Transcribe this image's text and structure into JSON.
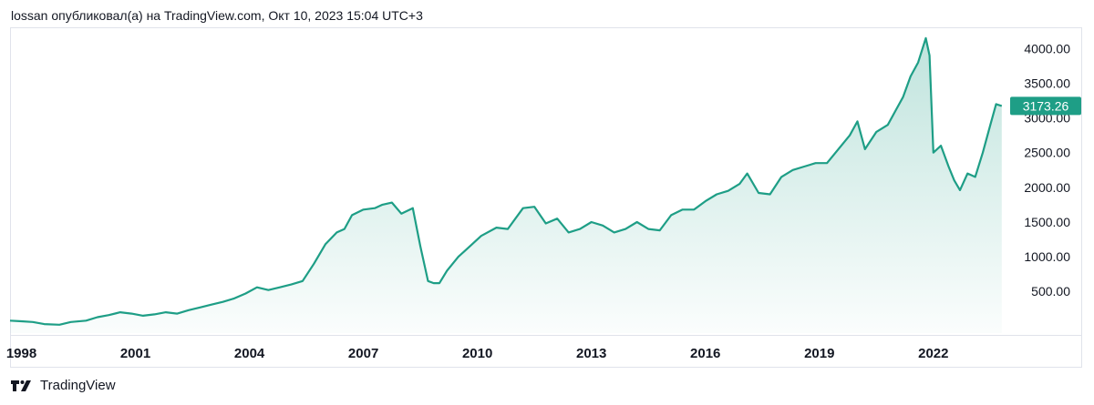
{
  "header": {
    "published_text": "lossan опубликовал(а) на TradingView.com, Окт 10, 2023 15:04 UTC+3"
  },
  "footer": {
    "brand": "TradingView",
    "logo_icon": "tradingview-logo-icon"
  },
  "chart_data": {
    "type": "area",
    "line_color": "#1e9e86",
    "fill_color": "#1e9e86",
    "last_value_label": "3173.26",
    "yticks": [
      500,
      1000,
      1500,
      2000,
      2500,
      3000,
      3500,
      4000
    ],
    "ytick_labels": [
      "500.00",
      "1000.00",
      "1500.00",
      "2000.00",
      "2500.00",
      "3000.00",
      "3500.00",
      "4000.00"
    ],
    "ylim": [
      -100,
      4280
    ],
    "xlim": [
      1997.7,
      2023.9
    ],
    "xticks": [
      1998,
      2001,
      2004,
      2007,
      2010,
      2013,
      2016,
      2019,
      2022
    ],
    "xtick_labels": [
      "1998",
      "2001",
      "2004",
      "2007",
      "2010",
      "2013",
      "2016",
      "2019",
      "2022"
    ],
    "x": [
      1997.7,
      1998.0,
      1998.3,
      1998.6,
      1999.0,
      1999.3,
      1999.7,
      2000.0,
      2000.3,
      2000.6,
      2000.9,
      2001.2,
      2001.5,
      2001.8,
      2002.1,
      2002.4,
      2002.7,
      2003.0,
      2003.3,
      2003.6,
      2003.9,
      2004.2,
      2004.5,
      2004.8,
      2005.1,
      2005.4,
      2005.7,
      2006.0,
      2006.3,
      2006.5,
      2006.7,
      2007.0,
      2007.3,
      2007.5,
      2007.75,
      2008.0,
      2008.3,
      2008.5,
      2008.7,
      2008.85,
      2009.0,
      2009.2,
      2009.5,
      2009.8,
      2010.1,
      2010.5,
      2010.8,
      2011.2,
      2011.5,
      2011.8,
      2012.1,
      2012.4,
      2012.7,
      2013.0,
      2013.3,
      2013.6,
      2013.9,
      2014.2,
      2014.5,
      2014.8,
      2015.1,
      2015.4,
      2015.7,
      2016.0,
      2016.3,
      2016.6,
      2016.9,
      2017.1,
      2017.4,
      2017.7,
      2018.0,
      2018.3,
      2018.6,
      2018.9,
      2019.2,
      2019.5,
      2019.8,
      2020.0,
      2020.2,
      2020.5,
      2020.8,
      2021.0,
      2021.2,
      2021.4,
      2021.6,
      2021.8,
      2021.9,
      2022.0,
      2022.2,
      2022.4,
      2022.55,
      2022.7,
      2022.9,
      2023.1,
      2023.3,
      2023.5,
      2023.65,
      2023.8
    ],
    "values": [
      80,
      70,
      60,
      30,
      20,
      60,
      80,
      130,
      160,
      200,
      180,
      150,
      170,
      200,
      180,
      230,
      270,
      310,
      350,
      400,
      470,
      560,
      520,
      560,
      600,
      650,
      900,
      1180,
      1350,
      1400,
      1600,
      1680,
      1700,
      1750,
      1780,
      1620,
      1700,
      1150,
      650,
      620,
      620,
      800,
      1000,
      1150,
      1300,
      1420,
      1400,
      1700,
      1720,
      1480,
      1550,
      1350,
      1400,
      1500,
      1450,
      1350,
      1400,
      1500,
      1400,
      1380,
      1600,
      1680,
      1680,
      1800,
      1900,
      1950,
      2050,
      2200,
      1920,
      1900,
      2150,
      2250,
      2300,
      2350,
      2350,
      2550,
      2750,
      2950,
      2550,
      2800,
      2900,
      3100,
      3300,
      3600,
      3800,
      4150,
      3900,
      2500,
      2600,
      2300,
      2100,
      1960,
      2200,
      2150,
      2500,
      2900,
      3200,
      3173
    ]
  }
}
